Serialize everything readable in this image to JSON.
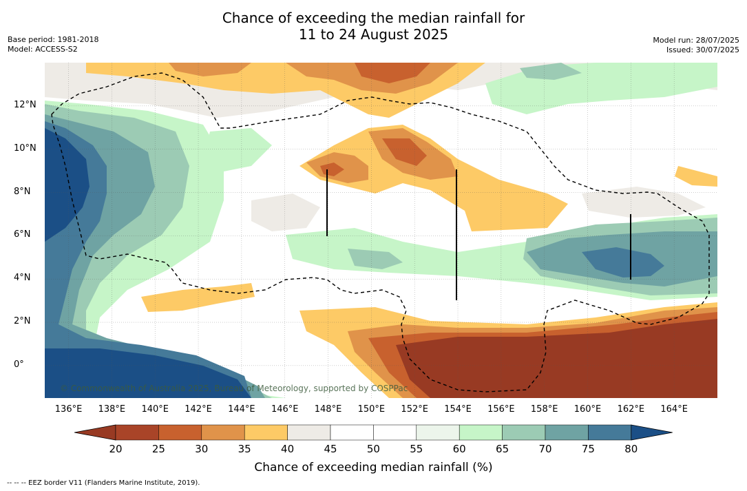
{
  "title_line1": "Chance of exceeding the median rainfall for",
  "title_line2": "11 to 24 August 2025",
  "base_period": "Base period: 1981-2018",
  "model": "Model: ACCESS-S2",
  "model_run": "Model run: 28/07/2025",
  "issued": "Issued: 30/07/2025",
  "copyright": "© Commonwealth of Australia 2025, Bureau of Meteorology, supported by COSPPac",
  "colorbar_label": "Chance of exceeding median rainfall (%)",
  "footnote": "--  --  -- EEZ border V11 (Flanders Marine Institute, 2019).",
  "x_ticks": [
    {
      "label": "136°E",
      "lon": 136
    },
    {
      "label": "138°E",
      "lon": 138
    },
    {
      "label": "140°E",
      "lon": 140
    },
    {
      "label": "142°E",
      "lon": 142
    },
    {
      "label": "144°E",
      "lon": 144
    },
    {
      "label": "146°E",
      "lon": 146
    },
    {
      "label": "148°E",
      "lon": 148
    },
    {
      "label": "150°E",
      "lon": 150
    },
    {
      "label": "152°E",
      "lon": 152
    },
    {
      "label": "154°E",
      "lon": 154
    },
    {
      "label": "156°E",
      "lon": 156
    },
    {
      "label": "158°E",
      "lon": 158
    },
    {
      "label": "160°E",
      "lon": 160
    },
    {
      "label": "162°E",
      "lon": 162
    },
    {
      "label": "164°E",
      "lon": 164
    }
  ],
  "y_ticks": [
    {
      "label": "12°N",
      "lat": 12
    },
    {
      "label": "10°N",
      "lat": 10
    },
    {
      "label": "8°N",
      "lat": 8
    },
    {
      "label": "6°N",
      "lat": 6
    },
    {
      "label": "4°N",
      "lat": 4
    },
    {
      "label": "2°N",
      "lat": 2
    },
    {
      "label": "0°",
      "lat": 0
    }
  ],
  "map_extent": {
    "lon": [
      134.9,
      166.0
    ],
    "lat": [
      -1.5,
      14.0
    ]
  },
  "colorbar": {
    "labels": [
      "20",
      "25",
      "30",
      "35",
      "40",
      "45",
      "50",
      "55",
      "60",
      "65",
      "70",
      "75",
      "80"
    ],
    "colors": [
      "#a94428",
      "#c8612e",
      "#e0934a",
      "#fdca66",
      "#eeebe6",
      "#ffffff",
      "#ffffff",
      "#ecf5eb",
      "#c6f5c8",
      "#9ccbb4",
      "#6fa3a3",
      "#457a99"
    ],
    "under_color": "#983a23",
    "over_color": "#1b4f86"
  }
}
